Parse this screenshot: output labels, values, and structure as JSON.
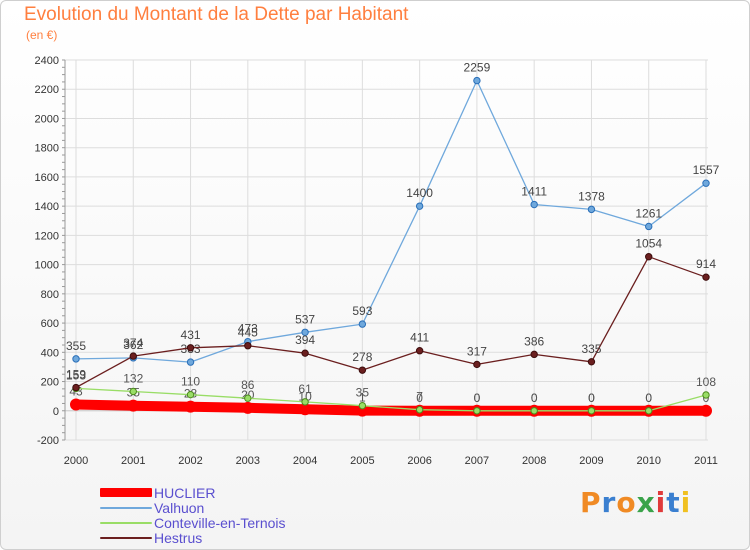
{
  "title": "Evolution du Montant de la Dette par Habitant",
  "subtitle": "(en €)",
  "logo": {
    "letters": [
      "P",
      "r",
      "o",
      "x",
      "i",
      "t",
      "i"
    ],
    "colors": [
      "#f08a24",
      "#3a7fd0",
      "#f08a24",
      "#3aa34a",
      "#e03a3a",
      "#3a7fd0",
      "#f0c020"
    ]
  },
  "chart_data": {
    "type": "line",
    "categories": [
      "2000",
      "2001",
      "2002",
      "2003",
      "2004",
      "2005",
      "2006",
      "2007",
      "2008",
      "2009",
      "2010",
      "2011"
    ],
    "ylim": [
      -200,
      2400
    ],
    "yticks": [
      -200,
      0,
      200,
      400,
      600,
      800,
      1000,
      1200,
      1400,
      1600,
      1800,
      2000,
      2200,
      2400
    ],
    "legend_position": "bottom-left",
    "series": [
      {
        "name": "HUCLIER",
        "color": "#ff0000",
        "values": [
          43,
          35,
          28,
          20,
          10,
          1,
          0,
          0,
          0,
          0,
          0,
          0
        ],
        "labels": [
          "43",
          "35",
          "28",
          "20",
          "10",
          "1",
          "0",
          "0",
          "0",
          "0",
          "0",
          "0"
        ]
      },
      {
        "name": "Valhuon",
        "color": "#6fa8dc",
        "values": [
          355,
          362,
          333,
          473,
          537,
          593,
          1400,
          2259,
          1411,
          1378,
          1261,
          1557
        ],
        "labels": [
          "355",
          "362",
          "333",
          "473",
          "537",
          "593",
          "1400",
          "2259",
          "1411",
          "1378",
          "1261",
          "1557"
        ]
      },
      {
        "name": "Conteville-en-Ternois",
        "color": "#99dd66",
        "values": [
          153,
          132,
          110,
          86,
          61,
          35,
          7,
          0,
          0,
          0,
          0,
          108
        ],
        "labels": [
          "153",
          "132",
          "110",
          "86",
          "61",
          "35",
          "7",
          "0",
          "0",
          "0",
          "0",
          "108"
        ]
      },
      {
        "name": "Hestrus",
        "color": "#6b1f1f",
        "values": [
          159,
          374,
          431,
          445,
          394,
          278,
          411,
          317,
          386,
          335,
          1054,
          914
        ],
        "labels": [
          "159",
          "374",
          "431",
          "445",
          "394",
          "278",
          "411",
          "317",
          "386",
          "335",
          "1054",
          "914"
        ]
      }
    ]
  }
}
